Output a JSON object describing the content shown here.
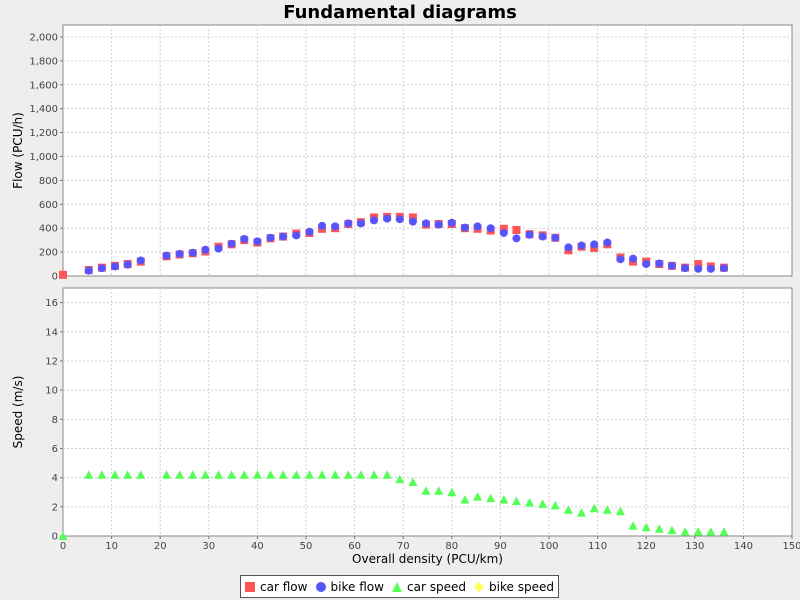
{
  "chart_data": [
    {
      "type": "scatter",
      "title": "Fundamental diagrams",
      "xlabel": "Overall density (PCU/km)",
      "ylabel": "Flow (PCU/h)",
      "xlim": [
        0,
        150
      ],
      "ylim": [
        0,
        2100
      ],
      "yticks": [
        0,
        200,
        400,
        600,
        800,
        1000,
        1200,
        1400,
        1600,
        1800,
        2000
      ],
      "ytick_labels": [
        "0",
        "200",
        "400",
        "600",
        "800",
        "1,000",
        "1,200",
        "1,400",
        "1,600",
        "1,800",
        "2,000"
      ],
      "grid": true,
      "series": [
        {
          "name": "car flow",
          "color": "#ff5555",
          "marker": "square",
          "x": [
            0,
            5.3,
            8.0,
            10.7,
            13.3,
            16.0,
            21.3,
            24.0,
            26.7,
            29.3,
            32.0,
            34.7,
            37.3,
            40.0,
            42.7,
            45.3,
            48.0,
            50.7,
            53.3,
            56.0,
            58.7,
            61.3,
            64.0,
            66.7,
            69.3,
            72.0,
            74.7,
            77.3,
            80.0,
            82.7,
            85.3,
            88.0,
            90.7,
            93.3,
            96.0,
            98.7,
            101.3,
            104.0,
            106.7,
            109.3,
            112.0,
            114.7,
            117.3,
            120.0,
            122.7,
            125.3,
            128.0,
            130.7,
            133.3,
            136.0
          ],
          "y": [
            10,
            50,
            70,
            85,
            100,
            120,
            165,
            180,
            190,
            205,
            245,
            265,
            300,
            280,
            315,
            330,
            355,
            360,
            395,
            400,
            435,
            450,
            490,
            495,
            495,
            490,
            430,
            435,
            435,
            400,
            395,
            380,
            395,
            385,
            350,
            340,
            320,
            215,
            245,
            235,
            265,
            155,
            120,
            120,
            100,
            85,
            70,
            100,
            80,
            70
          ]
        },
        {
          "name": "bike flow",
          "color": "#5555ff",
          "marker": "circle",
          "x": [
            5.3,
            8.0,
            10.7,
            13.3,
            16.0,
            21.3,
            24.0,
            26.7,
            29.3,
            32.0,
            34.7,
            37.3,
            40.0,
            42.7,
            45.3,
            48.0,
            50.7,
            53.3,
            56.0,
            58.7,
            61.3,
            64.0,
            66.7,
            69.3,
            72.0,
            74.7,
            77.3,
            80.0,
            82.7,
            85.3,
            88.0,
            90.7,
            93.3,
            96.0,
            98.7,
            101.3,
            104.0,
            106.7,
            109.3,
            112.0,
            114.7,
            117.3,
            120.0,
            122.7,
            125.3,
            128.0,
            130.7,
            133.3,
            136.0
          ],
          "y": [
            45,
            65,
            80,
            95,
            130,
            170,
            185,
            195,
            220,
            230,
            270,
            310,
            290,
            320,
            330,
            340,
            370,
            420,
            415,
            440,
            440,
            465,
            480,
            475,
            455,
            440,
            430,
            445,
            405,
            415,
            400,
            360,
            315,
            345,
            330,
            320,
            240,
            255,
            265,
            280,
            140,
            145,
            100,
            105,
            85,
            65,
            60,
            60,
            65
          ]
        }
      ]
    },
    {
      "type": "scatter",
      "xlabel": "Overall density (PCU/km)",
      "ylabel": "Speed (m/s)",
      "xlim": [
        0,
        150
      ],
      "ylim": [
        0,
        17
      ],
      "xticks": [
        0,
        10,
        20,
        30,
        40,
        50,
        60,
        70,
        80,
        90,
        100,
        110,
        120,
        130,
        140,
        150
      ],
      "yticks": [
        0,
        2,
        4,
        6,
        8,
        10,
        12,
        14,
        16
      ],
      "grid": true,
      "series": [
        {
          "name": "car speed",
          "color": "#55ff55",
          "marker": "triangle",
          "x": [
            0,
            5.3,
            8.0,
            10.7,
            13.3,
            16.0,
            21.3,
            24.0,
            26.7,
            29.3,
            32.0,
            34.7,
            37.3,
            40.0,
            42.7,
            45.3,
            48.0,
            50.7,
            53.3,
            56.0,
            58.7,
            61.3,
            64.0,
            66.7,
            69.3,
            72.0,
            74.7,
            77.3,
            80.0,
            82.7,
            85.3,
            88.0,
            90.7,
            93.3,
            96.0,
            98.7,
            101.3,
            104.0,
            106.7,
            109.3,
            112.0,
            114.7,
            117.3,
            120.0,
            122.7,
            125.3,
            128.0,
            130.7,
            133.3,
            136.0
          ],
          "y": [
            0,
            4.2,
            4.2,
            4.2,
            4.2,
            4.2,
            4.2,
            4.2,
            4.2,
            4.2,
            4.2,
            4.2,
            4.2,
            4.2,
            4.2,
            4.2,
            4.2,
            4.2,
            4.2,
            4.2,
            4.2,
            4.2,
            4.2,
            4.2,
            3.9,
            3.7,
            3.1,
            3.1,
            3.0,
            2.5,
            2.7,
            2.6,
            2.5,
            2.4,
            2.3,
            2.2,
            2.1,
            1.8,
            1.6,
            1.9,
            1.8,
            1.7,
            0.7,
            0.6,
            0.5,
            0.4,
            0.3,
            0.3,
            0.3,
            0.3
          ]
        },
        {
          "name": "bike speed",
          "color": "#ffff55",
          "marker": "diamond",
          "x": [],
          "y": []
        }
      ]
    }
  ],
  "legend": [
    {
      "label": "car flow",
      "color": "#ff5555",
      "marker": "square"
    },
    {
      "label": "bike flow",
      "color": "#5555ff",
      "marker": "circle"
    },
    {
      "label": "car speed",
      "color": "#55ff55",
      "marker": "triangle"
    },
    {
      "label": "bike speed",
      "color": "#ffff55",
      "marker": "diamond"
    }
  ]
}
